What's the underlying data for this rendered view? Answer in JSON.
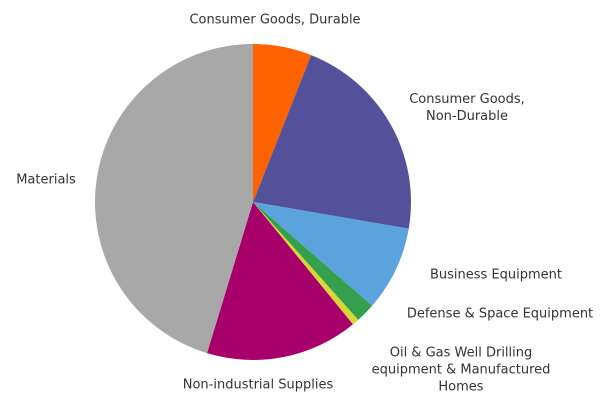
{
  "chart_data": {
    "type": "pie",
    "categories": [
      "Consumer Goods, Durable",
      "Consumer Goods, Non-Durable",
      "Business Equipment",
      "Defense & Space Equipment",
      "Oil & Gas Well Drilling equipment & Manufactured Homes",
      "Non-industrial Supplies",
      "Materials"
    ],
    "values": [
      6,
      21.7,
      8.7,
      2,
      0.7,
      15.6,
      45.3
    ],
    "colors": [
      "#ff6200",
      "#525199",
      "#5ba3dc",
      "#34a04e",
      "#d9d636",
      "#a8006a",
      "#a8a8a8"
    ]
  }
}
